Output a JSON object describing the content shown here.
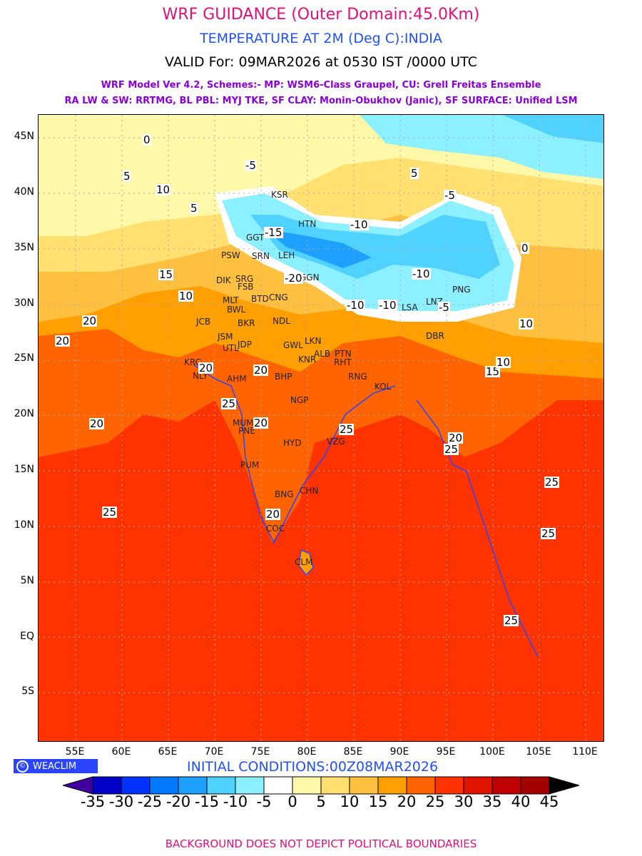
{
  "header": {
    "title": "WRF GUIDANCE (Outer Domain:45.0Km)",
    "subtitle": "TEMPERATURE AT 2M (Deg C):INDIA",
    "valid": "VALID For: 09MAR2026 at 0530 IST /0000 UTC",
    "model_line1": "WRF Model Ver 4.2, Schemes:- MP: WSM6-Class Graupel, CU: Grell Freitas Ensemble",
    "model_line2": "RA LW & SW: RRTMG, BL PBL: MYJ TKE, SF CLAY: Monin-Obukhov (Janic), SF SURFACE: Unified LSM"
  },
  "axes": {
    "lat_ticks": [
      "45N",
      "40N",
      "35N",
      "30N",
      "25N",
      "20N",
      "15N",
      "10N",
      "5N",
      "EQ",
      "5S"
    ],
    "lon_ticks": [
      "55E",
      "60E",
      "65E",
      "70E",
      "75E",
      "80E",
      "85E",
      "90E",
      "95E",
      "100E",
      "105E",
      "110E"
    ]
  },
  "cities": [
    "KSR",
    "HTN",
    "GGT",
    "SRN",
    "LEH",
    "PSW",
    "DIK",
    "SRG",
    "FSB",
    "MLT",
    "BWL",
    "BTD",
    "CNG",
    "JCB",
    "BKR",
    "NDL",
    "JSM",
    "JDP",
    "UTL",
    "GWL",
    "LKN",
    "ALB",
    "KNR",
    "PTN",
    "RHT",
    "GGN",
    "LSA",
    "LNZ",
    "PNG",
    "KRC",
    "NLY",
    "AHM",
    "BHP",
    "RNG",
    "KOL",
    "MUM",
    "PNE",
    "NGP",
    "HYD",
    "VZG",
    "PUM",
    "BNG",
    "CHN",
    "COC",
    "CLM",
    "DBR"
  ],
  "contour_labels": [
    "0",
    "-5",
    "5",
    "10",
    "5",
    "15",
    "10",
    "20",
    "-15",
    "-10",
    "-20",
    "-10",
    "-10",
    "-5",
    "5",
    "20",
    "20",
    "20",
    "25",
    "20",
    "25",
    "20",
    "25",
    "20",
    "25",
    "25",
    "20",
    "25",
    "25",
    "15",
    "10",
    "-10",
    "10",
    "0",
    "-5"
  ],
  "logo": "WEACLIM",
  "initial_conditions": "INITIAL CONDITIONS:00Z08MAR2026",
  "colorbar": {
    "labels": [
      "-35",
      "-30",
      "-25",
      "-20",
      "-15",
      "-10",
      "-5",
      "0",
      "5",
      "10",
      "15",
      "20",
      "25",
      "30",
      "35",
      "40",
      "45"
    ],
    "colors": [
      "#0000c8",
      "#0032ff",
      "#0078ff",
      "#1ea0ff",
      "#50d2ff",
      "#8cf0ff",
      "#ffffff",
      "#fff8a8",
      "#ffe070",
      "#ffc040",
      "#ffa000",
      "#ff6400",
      "#ff3200",
      "#e11400",
      "#c00000",
      "#a50000"
    ],
    "under_color": "#4000a0",
    "over_color": "#000000"
  },
  "footer": "BACKGROUND DOES NOT DEPICT POLITICAL BOUNDARIES"
}
